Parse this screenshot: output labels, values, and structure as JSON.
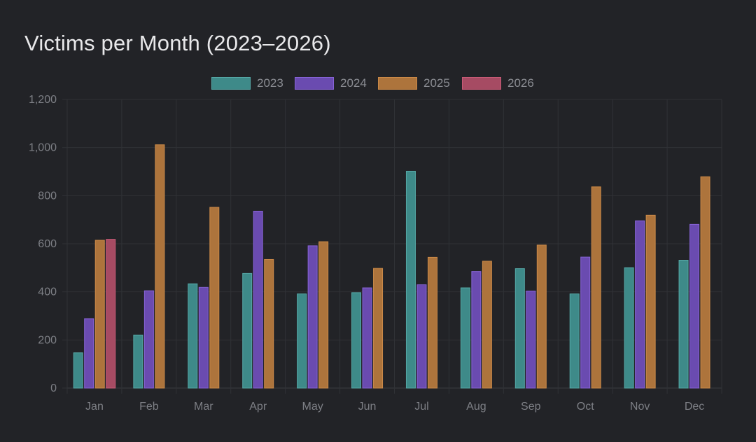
{
  "chart_data": {
    "type": "bar",
    "title": "Victims per Month (2023–2026)",
    "xlabel": "",
    "ylabel": "",
    "ylim": [
      0,
      1200
    ],
    "yticks": [
      0,
      200,
      400,
      600,
      800,
      1000,
      1200
    ],
    "ytick_labels": [
      "0",
      "200",
      "400",
      "600",
      "800",
      "1,000",
      "1,200"
    ],
    "grid": true,
    "legend_position": "top-center",
    "categories": [
      "Jan",
      "Feb",
      "Mar",
      "Apr",
      "May",
      "Jun",
      "Jul",
      "Aug",
      "Sep",
      "Oct",
      "Nov",
      "Dec"
    ],
    "series": [
      {
        "name": "2023",
        "color": "#3e8a89",
        "border": "#56a8a6",
        "values": [
          148,
          222,
          435,
          478,
          393,
          398,
          903,
          418,
          498,
          393,
          502,
          533
        ]
      },
      {
        "name": "2024",
        "color": "#6a4bb0",
        "border": "#8763d6",
        "values": [
          290,
          406,
          420,
          737,
          593,
          418,
          431,
          486,
          405,
          546,
          697,
          682
        ]
      },
      {
        "name": "2025",
        "color": "#ad743c",
        "border": "#cc8a48",
        "values": [
          616,
          1013,
          753,
          536,
          610,
          499,
          545,
          529,
          596,
          838,
          720,
          880
        ]
      },
      {
        "name": "2026",
        "color": "#a64b63",
        "border": "#c95b77",
        "values": [
          620,
          null,
          null,
          null,
          null,
          null,
          null,
          null,
          null,
          null,
          null,
          null
        ]
      }
    ]
  }
}
